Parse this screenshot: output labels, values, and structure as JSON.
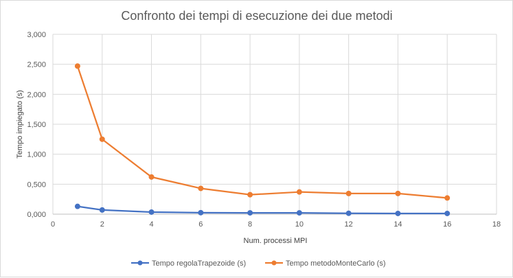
{
  "chart_data": {
    "type": "line",
    "title": "Confronto dei tempi di esecuzione dei due metodi",
    "xlabel": "Num. processi MPI",
    "ylabel": "Tempo impiegato (s)",
    "xlim": [
      0,
      18
    ],
    "ylim": [
      0,
      3
    ],
    "x_ticks": [
      "0",
      "2",
      "4",
      "6",
      "8",
      "10",
      "12",
      "14",
      "16",
      "18"
    ],
    "y_ticks": [
      "0,000",
      "0,500",
      "1,000",
      "1,500",
      "2,000",
      "2,500",
      "3,000"
    ],
    "grid": true,
    "legend_position": "bottom",
    "series": [
      {
        "name": "Tempo regolaTrapezoide (s)",
        "color": "#4472c4",
        "x": [
          1,
          2,
          4,
          6,
          8,
          10,
          12,
          14,
          16
        ],
        "values": [
          0.13,
          0.07,
          0.035,
          0.025,
          0.022,
          0.022,
          0.015,
          0.012,
          0.012
        ]
      },
      {
        "name": "Tempo metodoMonteCarlo (s)",
        "color": "#ed7d31",
        "x": [
          1,
          2,
          4,
          6,
          8,
          10,
          12,
          14,
          16
        ],
        "values": [
          2.47,
          1.25,
          0.62,
          0.43,
          0.325,
          0.37,
          0.345,
          0.345,
          0.27
        ]
      }
    ]
  }
}
